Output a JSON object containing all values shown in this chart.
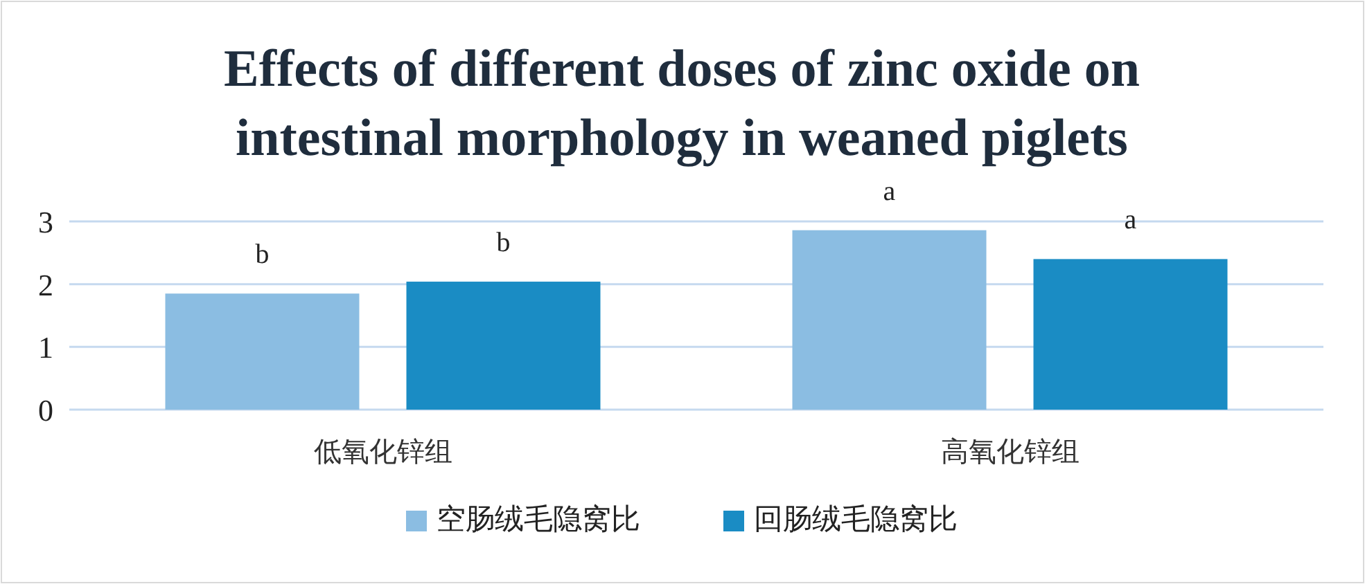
{
  "chart_data": {
    "type": "bar",
    "title": "Effects of different doses of zinc oxide on intestinal morphology in weaned piglets",
    "categories": [
      "低氧化锌组",
      "高氧化锌组"
    ],
    "series": [
      {
        "name": "空肠绒毛隐窝比",
        "color": "#8bbde2",
        "values": [
          1.85,
          2.86
        ]
      },
      {
        "name": "回肠绒毛隐窝比",
        "color": "#1a8cc4",
        "values": [
          2.04,
          2.4
        ]
      }
    ],
    "ylim": [
      0,
      3
    ],
    "yticks": [
      0,
      1,
      2,
      3
    ],
    "grid": "y",
    "legend": "bottom",
    "annotations": [
      "b",
      "b",
      "a",
      "a"
    ]
  }
}
